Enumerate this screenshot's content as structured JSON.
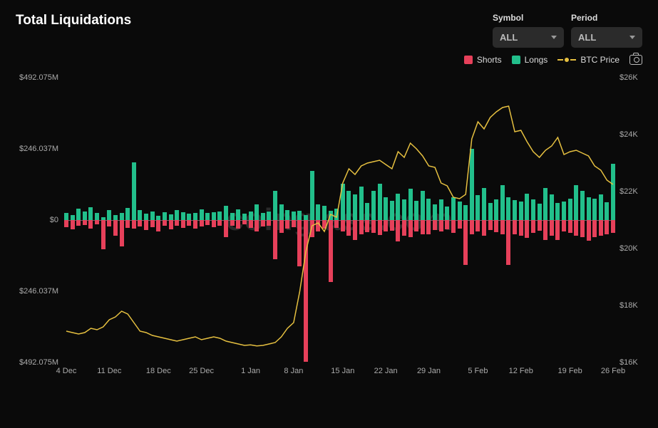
{
  "title": "Total Liquidations",
  "watermark": "coinglass.com",
  "controls": {
    "symbol_label": "Symbol",
    "symbol_value": "ALL",
    "period_label": "Period",
    "period_value": "ALL"
  },
  "legend": {
    "shorts": "Shorts",
    "longs": "Longs",
    "price": "BTC Price"
  },
  "colors": {
    "background": "#0a0a0a",
    "shorts": "#e6405a",
    "longs": "#22bf8b",
    "price": "#e6c040",
    "axis_text": "#aaaaaa",
    "watermark": "#2a2a2a",
    "selector_bg": "#2b2b2b"
  },
  "chart": {
    "type": "bar+line",
    "left_axis_max_M": 492.075,
    "left_axis_ticks": [
      "$492.075M",
      "$246.037M",
      "$0",
      "$246.037M",
      "$492.075M"
    ],
    "right_axis_ticks": [
      {
        "label": "$26K",
        "value": 26000
      },
      {
        "label": "$24K",
        "value": 24000
      },
      {
        "label": "$22K",
        "value": 22000
      },
      {
        "label": "$20K",
        "value": 20000
      },
      {
        "label": "$18K",
        "value": 18000
      },
      {
        "label": "$16K",
        "value": 16000
      }
    ],
    "right_axis_min": 16000,
    "right_axis_max": 26000,
    "x_labels": [
      "4 Dec",
      "11 Dec",
      "18 Dec",
      "25 Dec",
      "1 Jan",
      "8 Jan",
      "15 Jan",
      "22 Jan",
      "29 Jan",
      "5 Feb",
      "12 Feb",
      "19 Feb",
      "26 Feb"
    ],
    "bars": [
      {
        "long": 25,
        "short": 25
      },
      {
        "long": 18,
        "short": 32
      },
      {
        "long": 40,
        "short": 20
      },
      {
        "long": 30,
        "short": 18
      },
      {
        "long": 45,
        "short": 30
      },
      {
        "long": 25,
        "short": 15
      },
      {
        "long": 10,
        "short": 100
      },
      {
        "long": 35,
        "short": 22
      },
      {
        "long": 18,
        "short": 55
      },
      {
        "long": 25,
        "short": 90
      },
      {
        "long": 42,
        "short": 28
      },
      {
        "long": 200,
        "short": 30
      },
      {
        "long": 35,
        "short": 22
      },
      {
        "long": 22,
        "short": 35
      },
      {
        "long": 30,
        "short": 25
      },
      {
        "long": 15,
        "short": 40
      },
      {
        "long": 28,
        "short": 20
      },
      {
        "long": 20,
        "short": 32
      },
      {
        "long": 35,
        "short": 20
      },
      {
        "long": 26,
        "short": 28
      },
      {
        "long": 22,
        "short": 20
      },
      {
        "long": 25,
        "short": 30
      },
      {
        "long": 36,
        "short": 22
      },
      {
        "long": 25,
        "short": 18
      },
      {
        "long": 28,
        "short": 25
      },
      {
        "long": 30,
        "short": 20
      },
      {
        "long": 50,
        "short": 60
      },
      {
        "long": 25,
        "short": 20
      },
      {
        "long": 38,
        "short": 30
      },
      {
        "long": 22,
        "short": 15
      },
      {
        "long": 30,
        "short": 26
      },
      {
        "long": 55,
        "short": 40
      },
      {
        "long": 25,
        "short": 22
      },
      {
        "long": 30,
        "short": 20
      },
      {
        "long": 100,
        "short": 135
      },
      {
        "long": 55,
        "short": 45
      },
      {
        "long": 35,
        "short": 30
      },
      {
        "long": 30,
        "short": 25
      },
      {
        "long": 32,
        "short": 160
      },
      {
        "long": 18,
        "short": 490
      },
      {
        "long": 170,
        "short": 60
      },
      {
        "long": 55,
        "short": 40
      },
      {
        "long": 50,
        "short": 30
      },
      {
        "long": 32,
        "short": 215
      },
      {
        "long": 40,
        "short": 28
      },
      {
        "long": 125,
        "short": 40
      },
      {
        "long": 100,
        "short": 55
      },
      {
        "long": 88,
        "short": 70
      },
      {
        "long": 115,
        "short": 50
      },
      {
        "long": 60,
        "short": 42
      },
      {
        "long": 100,
        "short": 45
      },
      {
        "long": 125,
        "short": 52
      },
      {
        "long": 80,
        "short": 40
      },
      {
        "long": 66,
        "short": 38
      },
      {
        "long": 90,
        "short": 75
      },
      {
        "long": 72,
        "short": 55
      },
      {
        "long": 108,
        "short": 60
      },
      {
        "long": 66,
        "short": 40
      },
      {
        "long": 100,
        "short": 48
      },
      {
        "long": 75,
        "short": 50
      },
      {
        "long": 55,
        "short": 35
      },
      {
        "long": 72,
        "short": 40
      },
      {
        "long": 48,
        "short": 32
      },
      {
        "long": 80,
        "short": 45
      },
      {
        "long": 65,
        "short": 30
      },
      {
        "long": 52,
        "short": 155
      },
      {
        "long": 245,
        "short": 50
      },
      {
        "long": 85,
        "short": 40
      },
      {
        "long": 110,
        "short": 55
      },
      {
        "long": 60,
        "short": 35
      },
      {
        "long": 72,
        "short": 42
      },
      {
        "long": 120,
        "short": 50
      },
      {
        "long": 80,
        "short": 155
      },
      {
        "long": 70,
        "short": 48
      },
      {
        "long": 64,
        "short": 55
      },
      {
        "long": 92,
        "short": 62
      },
      {
        "long": 72,
        "short": 45
      },
      {
        "long": 56,
        "short": 38
      },
      {
        "long": 110,
        "short": 70
      },
      {
        "long": 88,
        "short": 55
      },
      {
        "long": 60,
        "short": 68
      },
      {
        "long": 65,
        "short": 40
      },
      {
        "long": 75,
        "short": 45
      },
      {
        "long": 120,
        "short": 55
      },
      {
        "long": 100,
        "short": 60
      },
      {
        "long": 80,
        "short": 72
      },
      {
        "long": 74,
        "short": 60
      },
      {
        "long": 88,
        "short": 55
      },
      {
        "long": 62,
        "short": 48
      },
      {
        "long": 195,
        "short": 45
      }
    ],
    "price": [
      17100,
      17050,
      17000,
      17050,
      17200,
      17150,
      17250,
      17500,
      17600,
      17800,
      17700,
      17400,
      17100,
      17050,
      16950,
      16900,
      16850,
      16800,
      16750,
      16800,
      16850,
      16900,
      16800,
      16850,
      16900,
      16850,
      16750,
      16700,
      16650,
      16600,
      16620,
      16580,
      16600,
      16650,
      16700,
      16900,
      17200,
      17400,
      18500,
      19900,
      20800,
      20900,
      20600,
      21200,
      21100,
      22300,
      22800,
      22600,
      22900,
      23000,
      23050,
      23100,
      22950,
      22800,
      23400,
      23200,
      23700,
      23500,
      23250,
      22900,
      22850,
      22300,
      22200,
      21800,
      21750,
      21900,
      23850,
      24450,
      24200,
      24600,
      24800,
      24950,
      25000,
      24100,
      24150,
      23750,
      23400,
      23200,
      23450,
      23600,
      23900,
      23300,
      23400,
      23450,
      23350,
      23250,
      22900,
      22750,
      22400,
      22250
    ]
  }
}
